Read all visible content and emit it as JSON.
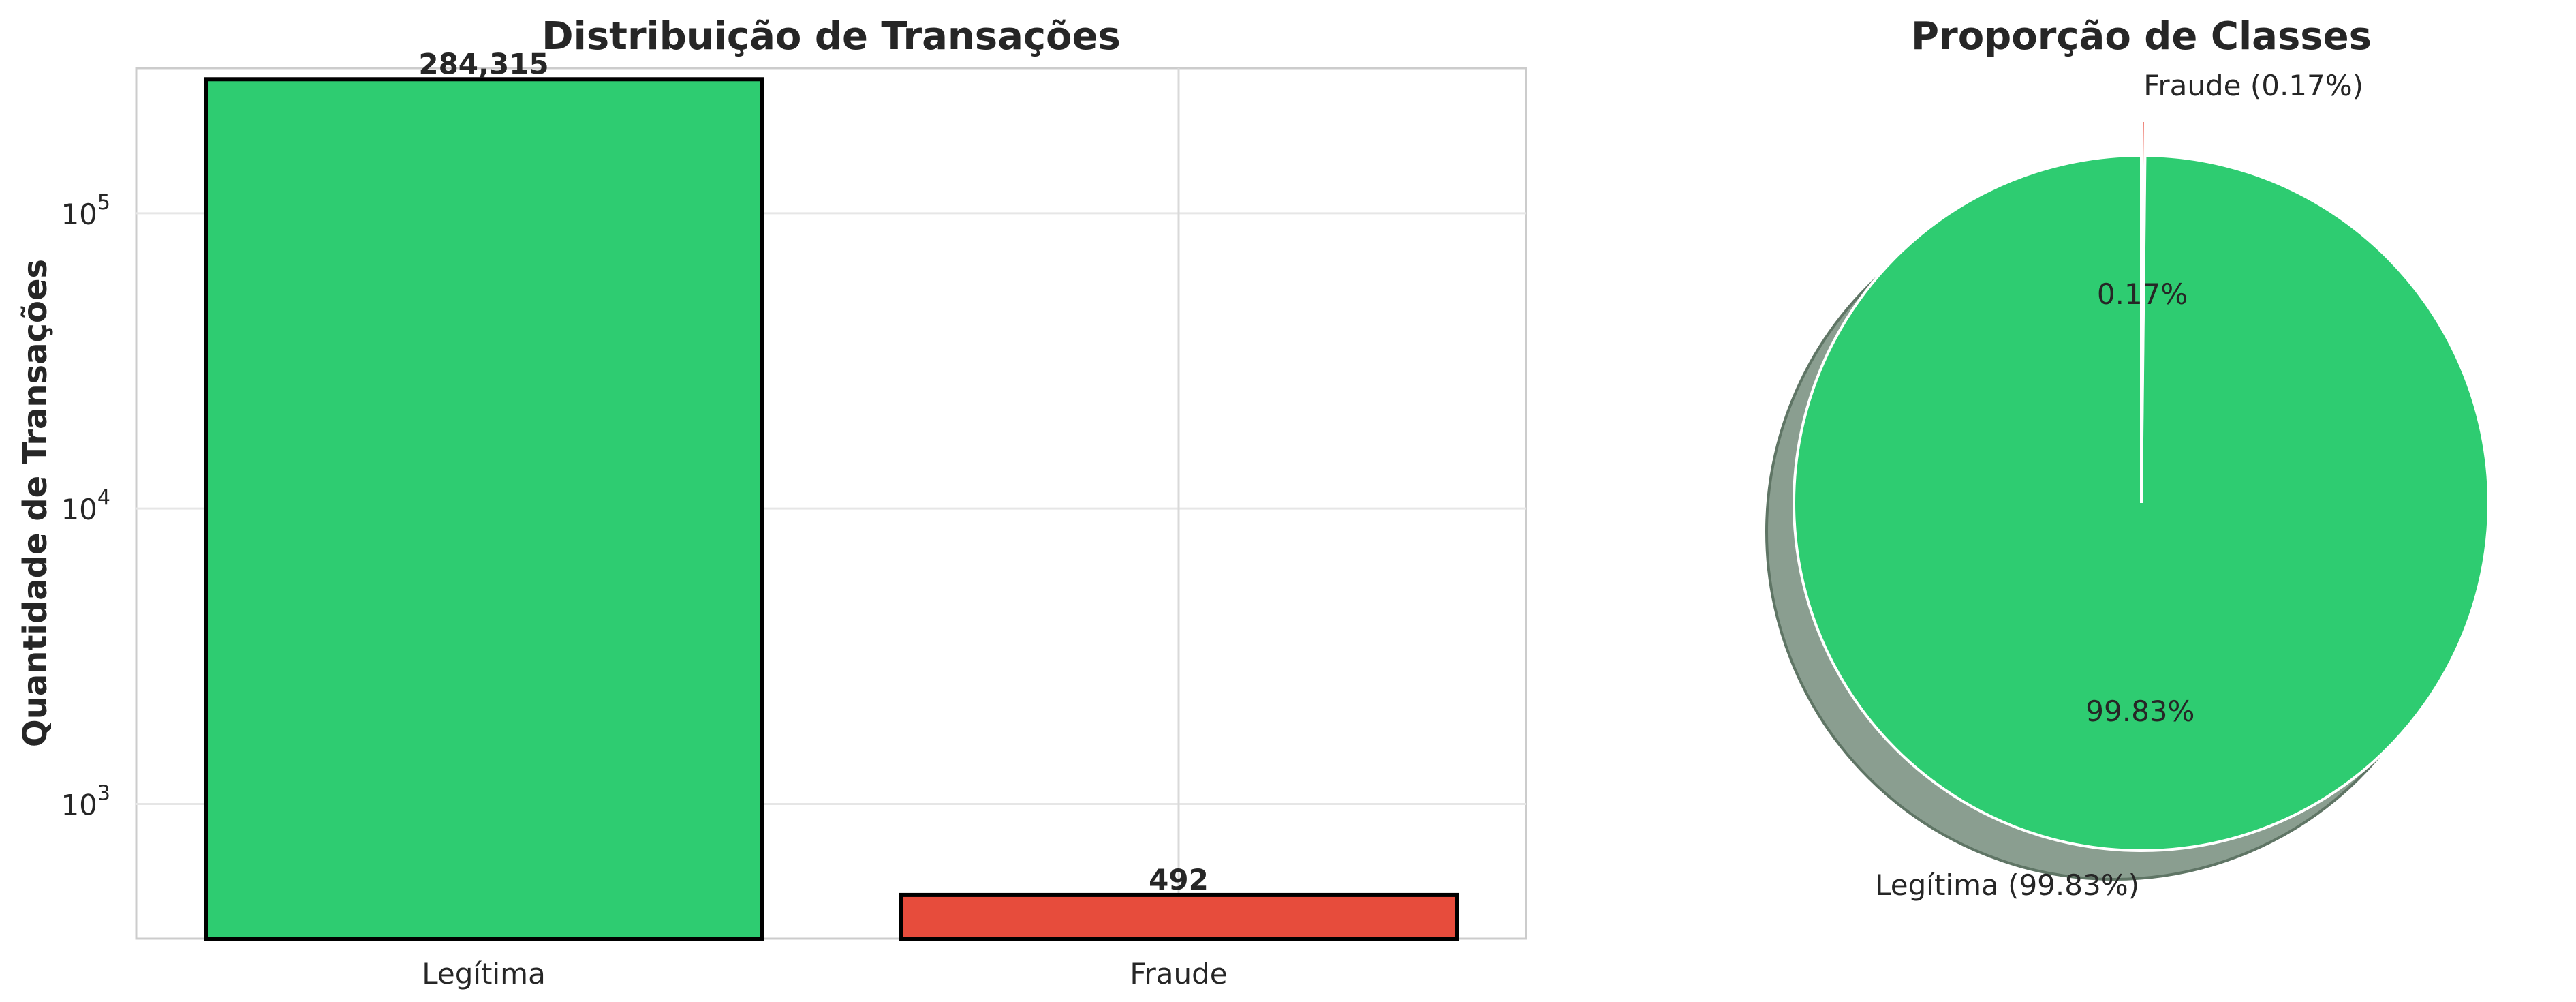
{
  "chart_data": [
    {
      "type": "bar",
      "title": "Distribuição de Transações",
      "xlabel": "",
      "ylabel": "Quantidade de Transações",
      "yscale": "log",
      "ylim": [
        350,
        310000
      ],
      "y_tick_labels": [
        {
          "base": "10",
          "exp": "3",
          "value": 1000
        },
        {
          "base": "10",
          "exp": "4",
          "value": 10000
        },
        {
          "base": "10",
          "exp": "5",
          "value": 100000
        }
      ],
      "categories": [
        "Legítima",
        "Fraude"
      ],
      "values": [
        284315,
        492
      ],
      "value_labels": [
        "284,315",
        "492"
      ],
      "colors": [
        "#2ecc71",
        "#e74c3c"
      ],
      "edge_color": "#000000",
      "grid": true
    },
    {
      "type": "pie",
      "title": "Proporção de Classes",
      "slices": [
        {
          "label": "Legítima (99.83%)",
          "value": 99.83,
          "pct_label": "99.83%",
          "color": "#2ecc71"
        },
        {
          "label": "Fraude (0.17%)",
          "value": 0.17,
          "pct_label": "0.17%",
          "color": "#e74c3c"
        }
      ],
      "explode": [
        0,
        0.1
      ],
      "shadow": true,
      "shadow_color": "#8a9e90"
    }
  ]
}
